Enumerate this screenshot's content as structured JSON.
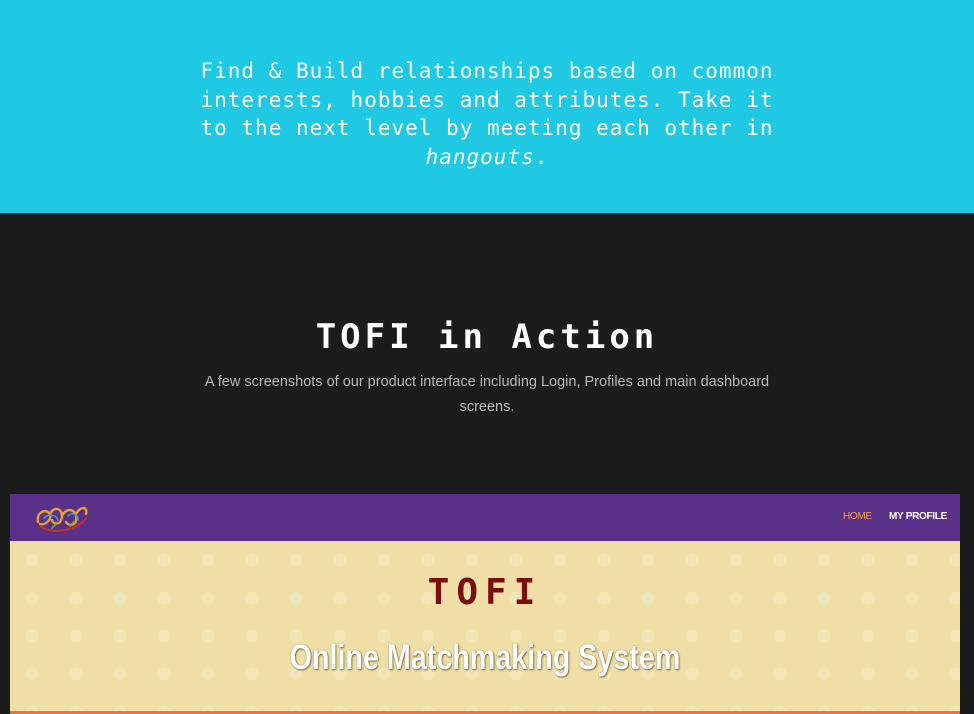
{
  "hero": {
    "text_main": "Find & Build relationships based on common interests, hobbies and attributes. Take it to the next level by meeting each other in ",
    "text_emphasis": "hangouts",
    "text_end": "."
  },
  "action": {
    "title": "TOFI in Action",
    "subtitle": "A few screenshots of our product interface including Login, Profiles and main dashboard screens."
  },
  "screenshot": {
    "nav": {
      "home": "HOME",
      "my_profile": "MY PROFILE"
    },
    "brand": "TOFI",
    "tagline": "Online Matchmaking System"
  },
  "colors": {
    "hero_bg": "#1fc8e3",
    "dark_bg": "#1c1c1c",
    "nav_bg": "#5a3189",
    "cream_bg": "#efdfa6",
    "brand_red": "#7a0d0d"
  }
}
